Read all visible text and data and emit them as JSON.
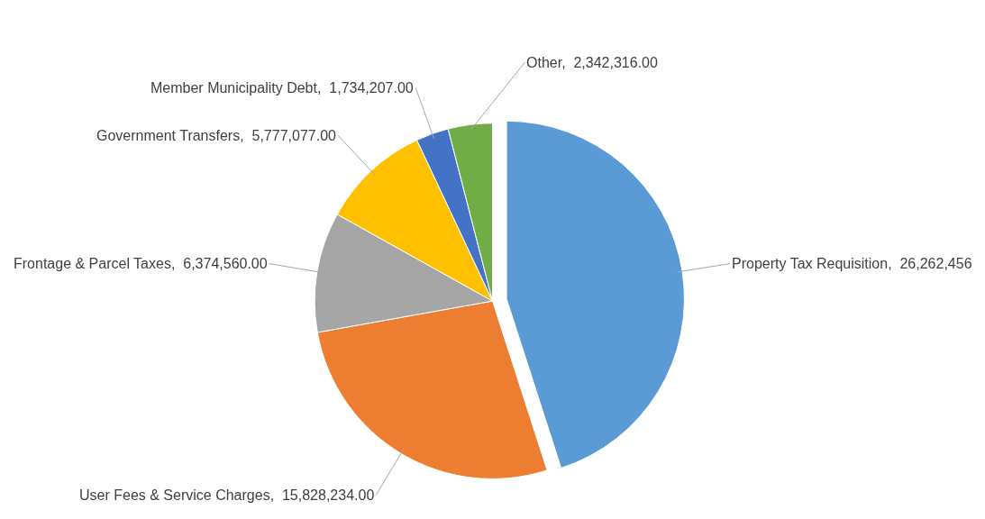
{
  "chart_data": {
    "type": "pie",
    "categories": [
      "Property Tax Requisition",
      "User Fees & Service Charges",
      "Frontage & Parcel Taxes",
      "Government Transfers",
      "Member Municipality Debt",
      "Other"
    ],
    "values": [
      26262456,
      15828234,
      6374560,
      5777077,
      1734207,
      2342316
    ],
    "value_labels": [
      "26,262,456",
      "15,828,234.00",
      "6,374,560.00",
      "5,777,077.00",
      "1,734,207.00",
      "2,342,316.00"
    ],
    "colors": [
      "#5b9bd5",
      "#ed7d31",
      "#a5a5a5",
      "#ffc000",
      "#4472c4",
      "#70ad47"
    ]
  }
}
